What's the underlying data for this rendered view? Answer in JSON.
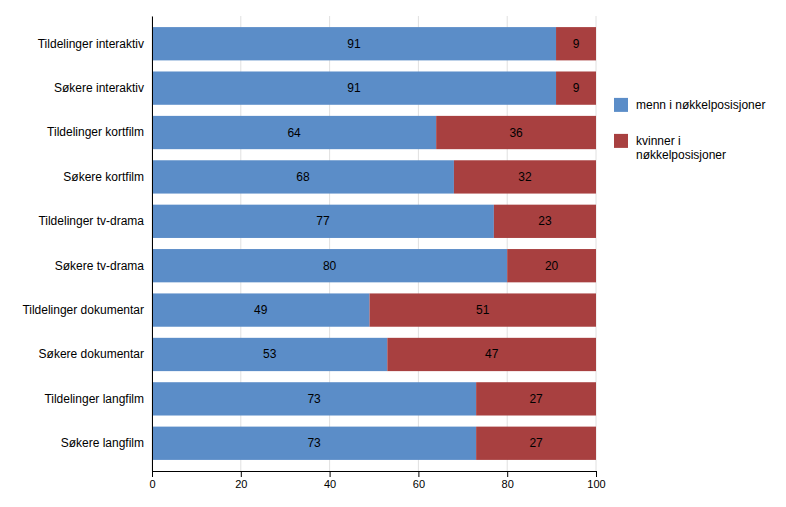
{
  "chart_data": {
    "type": "bar",
    "orientation": "horizontal",
    "stacked": true,
    "data_labels": true,
    "categories": [
      "Søkere langfilm",
      "Tildelinger langfilm",
      "Søkere dokumentar",
      "Tildelinger dokumentar",
      "Søkere tv-drama",
      "Tildelinger tv-drama",
      "Søkere kortfilm",
      "Tildelinger kortfilm",
      "Søkere interaktiv",
      "Tildelinger interaktiv"
    ],
    "series": [
      {
        "name": "menn i nøkkelposisjoner",
        "color": "#5B8DC8",
        "values": [
          73,
          73,
          53,
          49,
          80,
          77,
          68,
          64,
          91,
          91
        ]
      },
      {
        "name": "kvinner i\nnøkkelposisjoner",
        "color": "#A84040",
        "values": [
          27,
          27,
          47,
          51,
          20,
          23,
          32,
          36,
          9,
          9
        ]
      }
    ],
    "xlim": [
      0,
      100
    ],
    "xticks": [
      0,
      20,
      40,
      60,
      80,
      100
    ],
    "grid": true,
    "legend": "right"
  }
}
